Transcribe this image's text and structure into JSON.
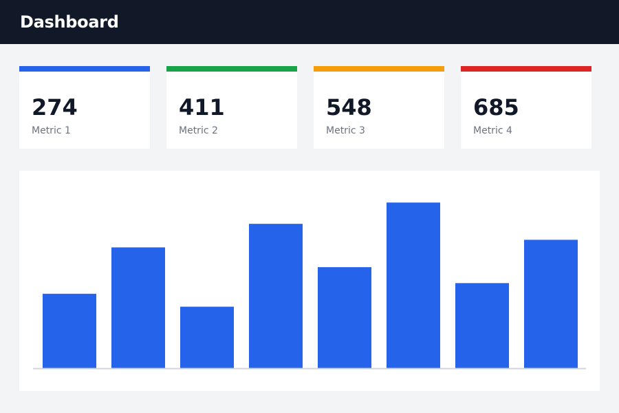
{
  "header": {
    "title": "Dashboard"
  },
  "metrics": [
    {
      "value": "274",
      "label": "Metric 1",
      "accent": "#2563eb"
    },
    {
      "value": "411",
      "label": "Metric 2",
      "accent": "#16a34a"
    },
    {
      "value": "548",
      "label": "Metric 3",
      "accent": "#f59e0b"
    },
    {
      "value": "685",
      "label": "Metric 4",
      "accent": "#dc2626"
    }
  ],
  "chart_data": {
    "type": "bar",
    "bar_color": "#2563eb",
    "values": [
      98,
      159,
      81,
      190,
      133,
      218,
      112,
      169
    ],
    "ylim": [
      0,
      230
    ],
    "grid": false
  }
}
